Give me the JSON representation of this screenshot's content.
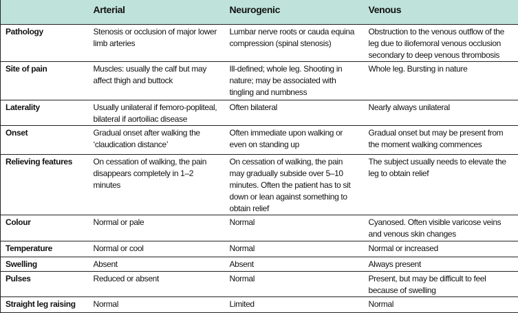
{
  "columns": [
    "",
    "Arterial",
    "Neurogenic",
    "Venous"
  ],
  "header_color": "#bfe3da",
  "rows": [
    {
      "label": "Pathology",
      "arterial": "Stenosis or occlusion of major lower limb arteries",
      "neurogenic": "Lumbar nerve roots or cauda equina compression (spinal stenosis)",
      "venous": "Obstruction to the venous outflow of the leg due to iliofemoral venous occlusion secondary to deep venous thrombosis"
    },
    {
      "label": "Site of pain",
      "arterial": "Muscles: usually the calf but may affect thigh and buttock",
      "neurogenic": "Ill-defined; whole leg. Shooting in nature; may be associated with tingling and numbness",
      "venous": "Whole leg. Bursting in nature"
    },
    {
      "label": "Laterality",
      "arterial": "Usually unilateral if femoro-popliteal, bilateral if aortoiliac disease",
      "neurogenic": "Often bilateral",
      "venous": "Nearly always unilateral"
    },
    {
      "label": "Onset",
      "arterial": "Gradual onset after walking the ‘claudication distance’",
      "neurogenic": "Often immediate upon walking or even on standing up",
      "venous": "Gradual onset but may be present from the moment walking commences"
    },
    {
      "label": "Relieving features",
      "arterial": "On cessation of walking, the pain disappears completely in 1–2 minutes",
      "neurogenic": "On cessation of walking, the pain may gradually subside over 5–10 minutes. Often the patient has to sit down or lean against something to obtain relief",
      "venous": "The subject usually needs to elevate the leg to obtain relief"
    },
    {
      "label": "Colour",
      "arterial": "Normal or pale",
      "neurogenic": "Normal",
      "venous": "Cyanosed. Often visible varicose veins and venous skin changes"
    },
    {
      "label": "Temperature",
      "arterial": "Normal or cool",
      "neurogenic": "Normal",
      "venous": "Normal or increased"
    },
    {
      "label": "Swelling",
      "arterial": "Absent",
      "neurogenic": "Absent",
      "venous": "Always present"
    },
    {
      "label": "Pulses",
      "arterial": "Reduced or absent",
      "neurogenic": "Normal",
      "venous": "Present, but may be difficult to feel because of swelling"
    },
    {
      "label": "Straight leg raising",
      "arterial": "Normal",
      "neurogenic": "Limited",
      "venous": "Normal"
    }
  ]
}
